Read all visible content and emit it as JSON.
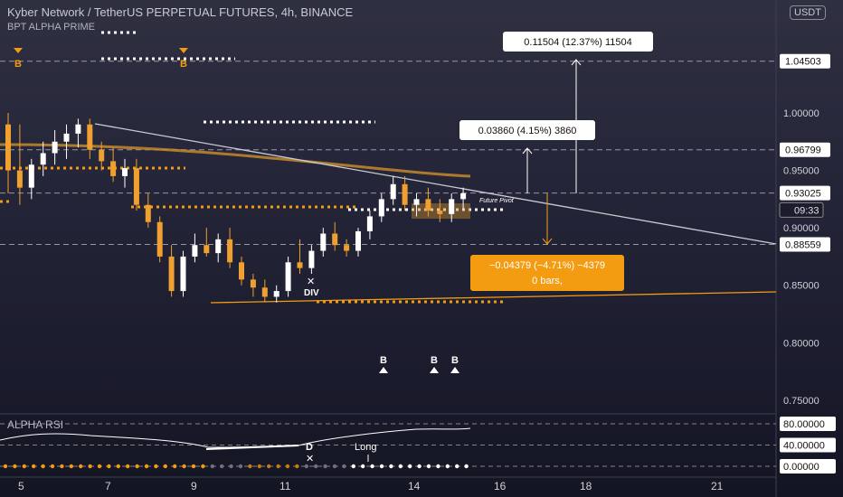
{
  "header": {
    "title": "Kyber Network / TetherUS PERPETUAL FUTURES, 4h, BINANCE",
    "indicator": "BPT ALPHA PRIME",
    "currency_button": "USDT"
  },
  "price_axis": {
    "ticks": [
      "1.00000",
      "0.95000",
      "0.90000",
      "0.85000",
      "0.80000",
      "0.75000"
    ],
    "tick_values": [
      1.0,
      0.95,
      0.9,
      0.85,
      0.8,
      0.75
    ],
    "highlighted": [
      {
        "label": "1.04503",
        "value": 1.04503,
        "style": "white"
      },
      {
        "label": "0.96799",
        "value": 0.96799,
        "style": "white"
      },
      {
        "label": "0.93025",
        "value": 0.93025,
        "style": "white"
      },
      {
        "label": "09:33",
        "value": 0.9155,
        "style": "countdown"
      },
      {
        "label": "0.88559",
        "value": 0.88559,
        "style": "white"
      }
    ]
  },
  "time_axis": {
    "labels": [
      "5",
      "7",
      "9",
      "11",
      "14",
      "16",
      "18",
      "21"
    ]
  },
  "rsi_axis": {
    "ticks": [
      "80.00000",
      "40.00000",
      "0.00000"
    ],
    "tick_values": [
      80,
      40,
      0
    ]
  },
  "rsi_panel": {
    "title": "ALPHA RSI",
    "annotations": [
      "D",
      "Long"
    ]
  },
  "measure_boxes": [
    {
      "text": "0.11504 (12.37%) 11504",
      "style": "light"
    },
    {
      "text": "0.03860 (4.15%) 3860",
      "style": "light"
    },
    {
      "text": "−0.04379 (−4.71%) −4379",
      "subtext": "0 bars,",
      "style": "orange"
    }
  ],
  "markers": [
    {
      "label": "B",
      "kind": "orange-down"
    },
    {
      "label": "B",
      "kind": "orange-down"
    },
    {
      "label": "B",
      "kind": "white-up"
    },
    {
      "label": "B",
      "kind": "white-up"
    },
    {
      "label": "B",
      "kind": "white-up"
    },
    {
      "label": "DIV",
      "kind": "text"
    },
    {
      "label": "Future Pivot",
      "kind": "text"
    }
  ],
  "colors": {
    "background": "#22233a",
    "candle_up": "#ffffff",
    "candle_down": "#f0a030",
    "accent_orange": "#f39c12",
    "trendline": "#c9cbd6"
  },
  "chart_data": {
    "type": "candlestick",
    "title": "Kyber Network / TetherUS PERPETUAL FUTURES, 4h, BINANCE",
    "xlabel": "",
    "ylabel": "",
    "ylim": [
      0.735,
      1.085
    ],
    "x_ticks": [
      "5",
      "7",
      "9",
      "11",
      "14",
      "16",
      "18",
      "21"
    ],
    "candles": [
      [
        0.99,
        1.0,
        0.93,
        0.95
      ],
      [
        0.95,
        0.99,
        0.92,
        0.935
      ],
      [
        0.935,
        0.96,
        0.925,
        0.955
      ],
      [
        0.955,
        0.975,
        0.945,
        0.965
      ],
      [
        0.965,
        0.985,
        0.955,
        0.975
      ],
      [
        0.975,
        0.99,
        0.96,
        0.982
      ],
      [
        0.982,
        0.995,
        0.97,
        0.99
      ],
      [
        0.99,
        0.995,
        0.96,
        0.968
      ],
      [
        0.968,
        0.975,
        0.95,
        0.958
      ],
      [
        0.958,
        0.97,
        0.94,
        0.945
      ],
      [
        0.945,
        0.96,
        0.935,
        0.952
      ],
      [
        0.952,
        0.96,
        0.915,
        0.92
      ],
      [
        0.92,
        0.93,
        0.9,
        0.905
      ],
      [
        0.905,
        0.91,
        0.87,
        0.875
      ],
      [
        0.875,
        0.885,
        0.84,
        0.845
      ],
      [
        0.845,
        0.88,
        0.84,
        0.875
      ],
      [
        0.875,
        0.895,
        0.87,
        0.885
      ],
      [
        0.885,
        0.9,
        0.875,
        0.878
      ],
      [
        0.878,
        0.895,
        0.87,
        0.89
      ],
      [
        0.89,
        0.9,
        0.865,
        0.87
      ],
      [
        0.87,
        0.875,
        0.85,
        0.855
      ],
      [
        0.855,
        0.86,
        0.84,
        0.848
      ],
      [
        0.848,
        0.855,
        0.835,
        0.84
      ],
      [
        0.84,
        0.85,
        0.835,
        0.845
      ],
      [
        0.845,
        0.875,
        0.84,
        0.87
      ],
      [
        0.87,
        0.89,
        0.86,
        0.865
      ],
      [
        0.865,
        0.885,
        0.86,
        0.88
      ],
      [
        0.88,
        0.9,
        0.875,
        0.895
      ],
      [
        0.895,
        0.905,
        0.88,
        0.885
      ],
      [
        0.885,
        0.89,
        0.875,
        0.88
      ],
      [
        0.88,
        0.9,
        0.875,
        0.897
      ],
      [
        0.897,
        0.915,
        0.89,
        0.91
      ],
      [
        0.91,
        0.93,
        0.905,
        0.925
      ],
      [
        0.925,
        0.945,
        0.92,
        0.938
      ],
      [
        0.938,
        0.945,
        0.915,
        0.92
      ],
      [
        0.92,
        0.93,
        0.91,
        0.925
      ],
      [
        0.925,
        0.935,
        0.91,
        0.915
      ],
      [
        0.915,
        0.925,
        0.905,
        0.912
      ],
      [
        0.912,
        0.93,
        0.905,
        0.925
      ],
      [
        0.925,
        0.935,
        0.915,
        0.93
      ]
    ],
    "levels": [
      1.04503,
      0.96799,
      0.93025,
      0.88559
    ]
  }
}
